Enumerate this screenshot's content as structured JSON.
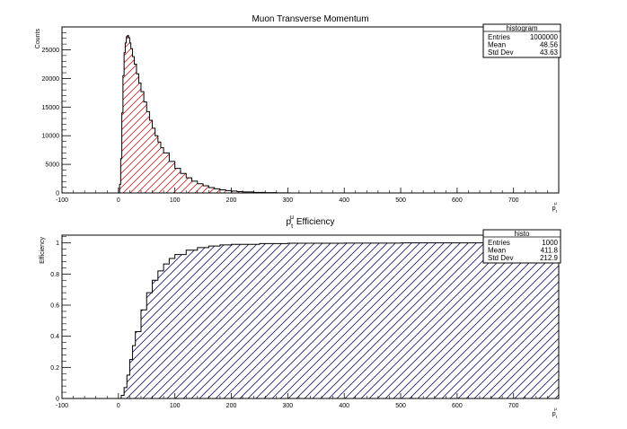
{
  "chart_data": [
    {
      "type": "area",
      "title": "Muon Transverse Momentum",
      "xlabel": "p_t^μ",
      "ylabel": "Counts",
      "xlim": [
        -100,
        780
      ],
      "ylim": [
        0,
        29000
      ],
      "x_ticks": [
        -100,
        0,
        100,
        200,
        300,
        400,
        500,
        600,
        700
      ],
      "y_ticks": [
        0,
        5000,
        10000,
        15000,
        20000,
        25000
      ],
      "grid": false,
      "fill_color": "#cc2222",
      "fill_pattern": "hatch",
      "series": [
        {
          "x": [
            0,
            2,
            4,
            6,
            8,
            10,
            12,
            14,
            16,
            18,
            20,
            22,
            25,
            28,
            32,
            36,
            40,
            45,
            50,
            55,
            60,
            65,
            70,
            75,
            80,
            90,
            100,
            110,
            120,
            130,
            140,
            150,
            160,
            170,
            180,
            190,
            200,
            210,
            220,
            240,
            260,
            280,
            300,
            320
          ],
          "values": [
            0,
            1500,
            6000,
            14000,
            20500,
            24500,
            26200,
            27300,
            27500,
            27100,
            26200,
            25200,
            23800,
            22500,
            20800,
            19200,
            17700,
            15900,
            14200,
            12700,
            11300,
            10000,
            8900,
            7900,
            7000,
            5500,
            4300,
            3400,
            2650,
            2050,
            1600,
            1250,
            950,
            720,
            550,
            420,
            330,
            240,
            180,
            100,
            50,
            25,
            10,
            0
          ]
        }
      ],
      "stats": {
        "title": "histogram",
        "rows": [
          {
            "label": "Entries",
            "value": "1000000"
          },
          {
            "label": "Mean",
            "value": "48.56"
          },
          {
            "label": "Std Dev",
            "value": "43.63"
          }
        ]
      }
    },
    {
      "type": "area",
      "title": "p_t^μ Efficiency",
      "xlabel": "p_t^μ",
      "ylabel": "Efficiency",
      "xlim": [
        -100,
        780
      ],
      "ylim": [
        0,
        1.05
      ],
      "x_ticks": [
        -100,
        0,
        100,
        200,
        300,
        400,
        500,
        600,
        700
      ],
      "y_ticks": [
        0,
        0.2,
        0.4,
        0.6,
        0.8,
        1
      ],
      "grid": false,
      "fill_color": "#1a1a66",
      "fill_pattern": "hatch",
      "series": [
        {
          "x": [
            0,
            5,
            10,
            15,
            20,
            25,
            30,
            40,
            50,
            60,
            70,
            80,
            90,
            100,
            120,
            140,
            160,
            180,
            200,
            250,
            300,
            400,
            500,
            600,
            700,
            780
          ],
          "values": [
            0,
            0.02,
            0.07,
            0.15,
            0.25,
            0.34,
            0.43,
            0.57,
            0.68,
            0.76,
            0.82,
            0.865,
            0.9,
            0.925,
            0.953,
            0.97,
            0.98,
            0.987,
            0.991,
            0.996,
            0.998,
            0.999,
            1.0,
            1.0,
            1.0,
            1.0
          ]
        }
      ],
      "stats": {
        "title": "histo",
        "rows": [
          {
            "label": "Entries",
            "value": "1000"
          },
          {
            "label": "Mean",
            "value": "411.8"
          },
          {
            "label": "Std Dev",
            "value": "212.9"
          }
        ]
      }
    }
  ]
}
